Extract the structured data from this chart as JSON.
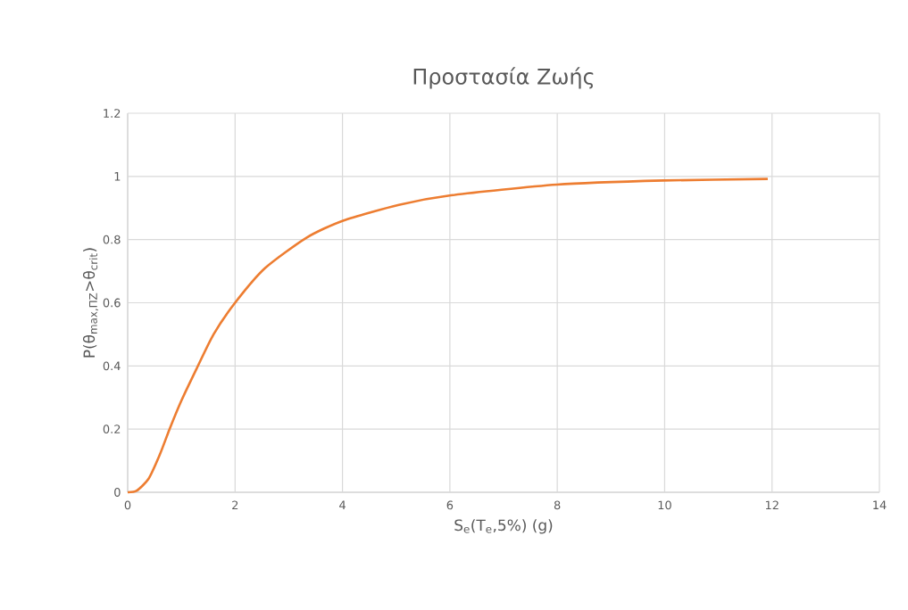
{
  "chart_data": {
    "type": "line",
    "title": "Προστασία Ζωής",
    "xlabel": "S$_{e}$(T$_{e}$,5%) (g)",
    "ylabel": "P(θ$_{max,ΠΖ}$>θ$_{crit}$)",
    "x": [
      0,
      0.17,
      0.39,
      0.6,
      0.78,
      1.0,
      1.28,
      1.6,
      2.0,
      2.56,
      3.33,
      4.01,
      5.05,
      6.02,
      7.99,
      9.98,
      11.92
    ],
    "series": [
      {
        "color": "#ed7d31",
        "values": [
          0,
          0.005,
          0.043,
          0.12,
          0.2,
          0.29,
          0.39,
          0.5,
          0.6,
          0.71,
          0.806,
          0.86,
          0.91,
          0.94,
          0.974,
          0.987,
          0.992
        ]
      }
    ],
    "xlim": [
      0,
      14
    ],
    "xticks": [
      0,
      2,
      4,
      6,
      8,
      10,
      12,
      14
    ],
    "ylim": [
      0,
      1.2
    ],
    "yticks": [
      0,
      {
        "value": 0.2,
        "label": "0.2"
      },
      {
        "value": 0.4,
        "label": "0.4"
      },
      {
        "value": 0.6,
        "label": "0.6"
      },
      {
        "value": 0.8,
        "label": "0.8"
      },
      1,
      {
        "value": 1.2,
        "label": "1.2"
      }
    ],
    "grid": true,
    "line_style": "solid"
  }
}
